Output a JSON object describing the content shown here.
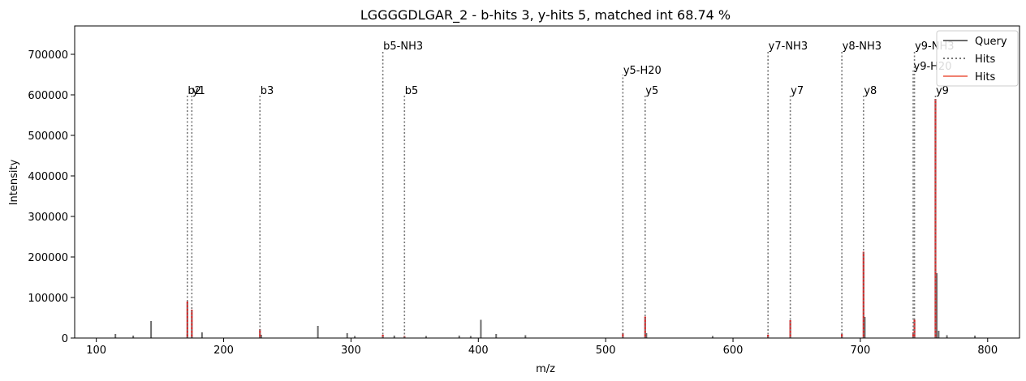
{
  "chart_data": {
    "type": "bar",
    "title": "LGGGGDLGAR_2 - b-hits 3, y-hits 5, matched int 68.74 %",
    "xlabel": "m/z",
    "ylabel": "Intensity",
    "xlim": [
      83,
      1825
    ],
    "ylim": [
      0,
      770000
    ],
    "xticks": [
      100,
      200,
      300,
      400,
      500,
      600,
      700,
      800
    ],
    "yticks": [
      0,
      100000,
      200000,
      300000,
      400000,
      500000,
      600000,
      700000
    ],
    "legend": {
      "position": "top-right",
      "entries": [
        "Query",
        "Hits",
        "Hits"
      ]
    },
    "colors": {
      "query": "#6b6b6b",
      "hits_line": "#777777",
      "hits_bar": "#d62728",
      "hits_legend": "#f08070"
    },
    "query_peaks": [
      {
        "mz": 115,
        "intensity": 10000
      },
      {
        "mz": 129,
        "intensity": 6000
      },
      {
        "mz": 143,
        "intensity": 42000
      },
      {
        "mz": 171.5,
        "intensity": 10000
      },
      {
        "mz": 175,
        "intensity": 8000
      },
      {
        "mz": 183,
        "intensity": 14000
      },
      {
        "mz": 229.5,
        "intensity": 8000
      },
      {
        "mz": 274,
        "intensity": 30000
      },
      {
        "mz": 297,
        "intensity": 12000
      },
      {
        "mz": 303,
        "intensity": 5000
      },
      {
        "mz": 334,
        "intensity": 6000
      },
      {
        "mz": 359,
        "intensity": 5000
      },
      {
        "mz": 385,
        "intensity": 6000
      },
      {
        "mz": 394,
        "intensity": 5000
      },
      {
        "mz": 402,
        "intensity": 45000
      },
      {
        "mz": 414,
        "intensity": 10000
      },
      {
        "mz": 437,
        "intensity": 7000
      },
      {
        "mz": 532,
        "intensity": 12000
      },
      {
        "mz": 584,
        "intensity": 5000
      },
      {
        "mz": 703.5,
        "intensity": 52000
      },
      {
        "mz": 760,
        "intensity": 160000
      },
      {
        "mz": 761.5,
        "intensity": 18000
      },
      {
        "mz": 768,
        "intensity": 7000
      },
      {
        "mz": 790,
        "intensity": 6000
      }
    ],
    "hit_peaks": [
      {
        "mz": 171.5,
        "intensity": 90000
      },
      {
        "mz": 175,
        "intensity": 70000
      },
      {
        "mz": 228.5,
        "intensity": 22000
      },
      {
        "mz": 325,
        "intensity": 8000
      },
      {
        "mz": 342,
        "intensity": 5000
      },
      {
        "mz": 513.5,
        "intensity": 12000
      },
      {
        "mz": 531,
        "intensity": 53000
      },
      {
        "mz": 627.5,
        "intensity": 8000
      },
      {
        "mz": 645,
        "intensity": 44000
      },
      {
        "mz": 685.5,
        "intensity": 10000
      },
      {
        "mz": 702.5,
        "intensity": 213000
      },
      {
        "mz": 741.5,
        "intensity": 14000
      },
      {
        "mz": 742.5,
        "intensity": 45000
      },
      {
        "mz": 759,
        "intensity": 590000
      }
    ],
    "annotations": [
      {
        "label": "b2",
        "mz": 171.5,
        "height": 600000
      },
      {
        "label": "y1",
        "mz": 175,
        "height": 600000
      },
      {
        "label": "b3",
        "mz": 228.5,
        "height": 600000
      },
      {
        "label": "b5-NH3",
        "mz": 325,
        "height": 710000
      },
      {
        "label": "b5",
        "mz": 342,
        "height": 600000
      },
      {
        "label": "y5-H20",
        "mz": 513.5,
        "height": 650000
      },
      {
        "label": "y5",
        "mz": 531,
        "height": 600000
      },
      {
        "label": "y7-NH3",
        "mz": 627.5,
        "height": 710000
      },
      {
        "label": "y7",
        "mz": 645,
        "height": 600000
      },
      {
        "label": "y8-NH3",
        "mz": 685.5,
        "height": 710000
      },
      {
        "label": "y8",
        "mz": 702.5,
        "height": 600000
      },
      {
        "label": "y9-NH3",
        "mz": 742.5,
        "height": 710000
      },
      {
        "label": "y9-H20",
        "mz": 741.5,
        "height": 660000
      },
      {
        "label": "y9",
        "mz": 759,
        "height": 600000
      }
    ]
  }
}
